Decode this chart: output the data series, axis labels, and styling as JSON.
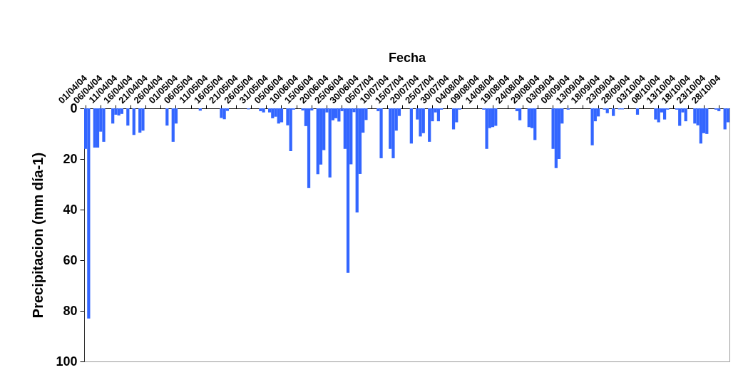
{
  "chart_data": {
    "type": "bar",
    "xlabel": "Fecha",
    "ylabel": "Precipitacion (mm día-1)",
    "color": "#3366ff",
    "ylim": [
      100,
      0
    ],
    "yticks": [
      0,
      20,
      40,
      60,
      80,
      100
    ],
    "categories": [
      "01/04/04",
      null,
      null,
      null,
      null,
      "06/04/04",
      null,
      null,
      null,
      null,
      "11/04/04",
      null,
      null,
      null,
      null,
      "16/04/04",
      null,
      null,
      null,
      null,
      "21/04/04",
      null,
      null,
      null,
      null,
      "26/04/04",
      null,
      null,
      null,
      null,
      "01/05/04",
      null,
      null,
      null,
      null,
      "06/05/04",
      null,
      null,
      null,
      null,
      "11/05/04",
      null,
      null,
      null,
      null,
      "16/05/04",
      null,
      null,
      null,
      null,
      "21/05/04",
      null,
      null,
      null,
      null,
      "26/05/04",
      null,
      null,
      null,
      null,
      "31/05/04",
      null,
      null,
      null,
      null,
      "05/06/04",
      null,
      null,
      null,
      null,
      "10/06/04",
      null,
      null,
      null,
      null,
      "15/06/04",
      null,
      null,
      null,
      null,
      "20/06/04",
      null,
      null,
      null,
      null,
      "25/06/04",
      null,
      null,
      null,
      null,
      "30/06/04",
      null,
      null,
      null,
      null,
      "05/07/04",
      null,
      null,
      null,
      null,
      "10/07/04",
      null,
      null,
      null,
      null,
      "15/07/04",
      null,
      null,
      null,
      null,
      "20/07/04",
      null,
      null,
      null,
      null,
      "25/07/04",
      null,
      null,
      null,
      null,
      "30/07/04",
      null,
      null,
      null,
      null,
      "04/08/04",
      null,
      null,
      null,
      null,
      "09/08/04",
      null,
      null,
      null,
      null,
      "14/08/04",
      null,
      null,
      null,
      null,
      "19/08/04",
      null,
      null,
      null,
      null,
      "24/08/04",
      null,
      null,
      null,
      null,
      "29/08/04",
      null,
      null,
      null,
      null,
      "03/09/04",
      null,
      null,
      null,
      null,
      "08/09/04",
      null,
      null,
      null,
      null,
      "13/09/04",
      null,
      null,
      null,
      null,
      "18/09/04",
      null,
      null,
      null,
      null,
      "23/09/04",
      null,
      null,
      null,
      null,
      "28/09/04",
      null,
      null,
      null,
      null,
      "03/10/04",
      null,
      null,
      null,
      null,
      "08/10/04",
      null,
      null,
      null,
      null,
      "13/10/04",
      null,
      null,
      null,
      null,
      "18/10/04",
      null,
      null,
      null,
      null,
      "23/10/04",
      null,
      null,
      null,
      null,
      "28/10/04",
      null,
      null,
      null
    ],
    "values": [
      16.0,
      83,
      0,
      15.5,
      15.5,
      9.2,
      13.2,
      0,
      0,
      6.0,
      2.5,
      2.8,
      2.2,
      0,
      6.8,
      0,
      10.5,
      0,
      9.6,
      8.8,
      0,
      0,
      0,
      0,
      0,
      0,
      0,
      6.8,
      0,
      13.2,
      6.0,
      0,
      0,
      0,
      0,
      0,
      0,
      0,
      0.9,
      0,
      0,
      0,
      0,
      0,
      0,
      3.8,
      4.3,
      1.0,
      0,
      0,
      0,
      0,
      0,
      0,
      0.4,
      0,
      0,
      0,
      1.1,
      1.6,
      0,
      1.6,
      3.9,
      3.3,
      6.0,
      5.5,
      0,
      6.7,
      16.9,
      0.5,
      0,
      0,
      0.8,
      7.0,
      31.5,
      0.8,
      0,
      26.0,
      22.2,
      16.5,
      1.6,
      27.3,
      4.7,
      3.9,
      5.2,
      1.1,
      16.0,
      65,
      22.1,
      1.5,
      41.1,
      25.9,
      9.6,
      4.6,
      0,
      0,
      0,
      1.1,
      19.7,
      0,
      0,
      16.0,
      19.7,
      8.8,
      3.0,
      0,
      0,
      0,
      13.9,
      0,
      4.4,
      11.1,
      9.8,
      0,
      13.2,
      5.1,
      1.6,
      5.1,
      0.5,
      0,
      0,
      0,
      8.3,
      5.5,
      0.5,
      0,
      0,
      0,
      0,
      0,
      0,
      0,
      0.5,
      16.0,
      7.8,
      7.4,
      6.9,
      0,
      0,
      0,
      0,
      0,
      0,
      1.1,
      4.7,
      0,
      0,
      7.4,
      7.8,
      12.5,
      0,
      0,
      0,
      0,
      0,
      16.0,
      23.6,
      20.0,
      6.0,
      0,
      0.5,
      0,
      0,
      0,
      0,
      0,
      0,
      0,
      14.6,
      5.1,
      3.2,
      0,
      0.5,
      1.9,
      0,
      3.0,
      0,
      0.4,
      0.4,
      0,
      0,
      0,
      0,
      2.5,
      0,
      0,
      0,
      0,
      0,
      4.4,
      5.5,
      1.6,
      4.4,
      0.5,
      0,
      0,
      0.5,
      6.9,
      1.6,
      5.1,
      0,
      0,
      6.0,
      6.7,
      13.9,
      9.8,
      10.1,
      0,
      0,
      0.5,
      1.1,
      0,
      8.3,
      5.5
    ]
  }
}
